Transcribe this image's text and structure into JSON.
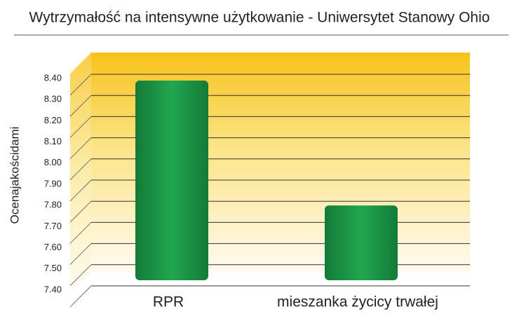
{
  "chart_data": {
    "type": "bar",
    "title": "Wytrzymałość na intensywne użytkowanie - Uniwersytet Stanowy Ohio",
    "y_label": "Ocenajakościdami",
    "categories": [
      "RPR",
      "mieszanka życicy trwałej"
    ],
    "values": [
      8.37,
      7.78
    ],
    "color": "#1f9a4a",
    "ylim": [
      7.4,
      8.4
    ],
    "yticks": [
      {
        "value": 7.4,
        "label": "7.40"
      },
      {
        "value": 7.5,
        "label": "7.50"
      },
      {
        "value": 7.6,
        "label": "7.60"
      },
      {
        "value": 7.7,
        "label": "7.70"
      },
      {
        "value": 7.8,
        "label": "7.80"
      },
      {
        "value": 7.9,
        "label": "7.90"
      },
      {
        "value": 8.0,
        "label": "8.00"
      },
      {
        "value": 8.1,
        "label": "8.10"
      },
      {
        "value": 8.2,
        "label": "8.20"
      },
      {
        "value": 8.3,
        "label": "8.30"
      },
      {
        "value": 8.4,
        "label": "8.40"
      }
    ],
    "grid": true
  }
}
